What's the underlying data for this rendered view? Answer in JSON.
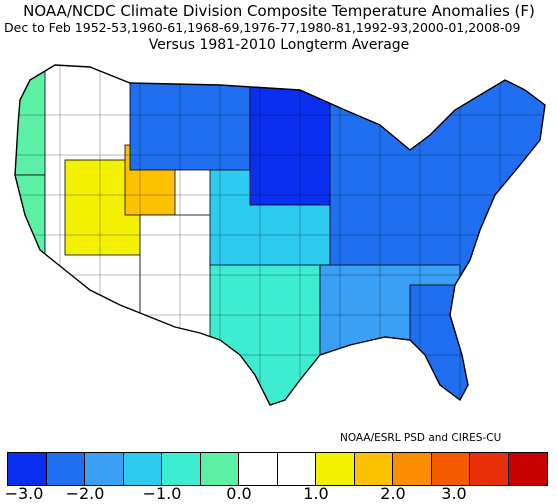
{
  "header": {
    "title": "NOAA/NCDC Climate Division Composite Temperature Anomalies (F)",
    "subtitle": "Dec to Feb  1952-53,1960-61,1968-69,1976-77,1980-81,1992-93,2000-01,2008-09",
    "baseline": "Versus 1981-2010 Longterm Average"
  },
  "credit": "NOAA/ESRL PSD and CIRES-CU",
  "colorbar": {
    "colors": [
      "#0b2ff0",
      "#1f6ff0",
      "#3aa0f5",
      "#2ccbef",
      "#3cedd2",
      "#5bf0a4",
      "#ffffff",
      "#ffffff",
      "#f4f100",
      "#fcc100",
      "#fc8d00",
      "#f65a00",
      "#e82f0a",
      "#c80000"
    ],
    "tick_labels": [
      "-3.0",
      "-2.0",
      "-1.0",
      "0.0",
      "1.0",
      "2.0",
      "3.0"
    ]
  },
  "map": {
    "regions": [
      {
        "name": "pacific-northwest",
        "color": "#5bf0a4"
      },
      {
        "name": "california-coast",
        "color": "#5bf0a4"
      },
      {
        "name": "great-basin",
        "color": "#ffffff"
      },
      {
        "name": "utah-colorado",
        "color": "#f4f100"
      },
      {
        "name": "wyoming-core",
        "color": "#fcc100"
      },
      {
        "name": "southwest",
        "color": "#ffffff"
      },
      {
        "name": "texas-southern-plains",
        "color": "#3cedd2"
      },
      {
        "name": "central-plains",
        "color": "#2ccbef"
      },
      {
        "name": "northern-plains",
        "color": "#1f6ff0"
      },
      {
        "name": "upper-midwest",
        "color": "#0b2ff0"
      },
      {
        "name": "ohio-valley-east",
        "color": "#1f6ff0"
      },
      {
        "name": "southeast",
        "color": "#3aa0f5"
      },
      {
        "name": "florida",
        "color": "#1f6ff0"
      }
    ]
  }
}
